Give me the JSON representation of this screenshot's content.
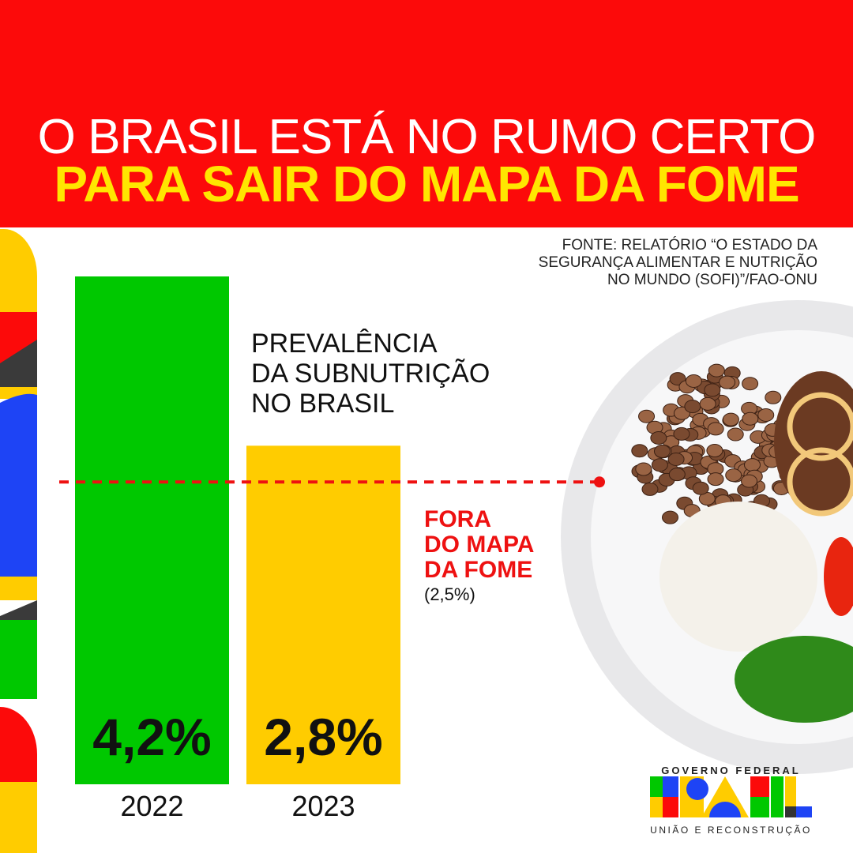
{
  "header": {
    "line1": "O BRASIL ESTÁ NO RUMO CERTO",
    "line2": "PARA SAIR DO MAPA DA FOME"
  },
  "source": [
    "FONTE: RELATÓRIO “O ESTADO DA",
    "SEGURANÇA ALIMENTAR E NUTRIÇÃO",
    "NO MUNDO (SOFI)”/FAO-ONU"
  ],
  "annotation": {
    "lines": [
      "FORA",
      "DO MAPA",
      "DA FOME"
    ],
    "value_label": "(2,5%)"
  },
  "logo": {
    "top": "GOVERNO FEDERAL",
    "word": "BRASIL",
    "bottom": "UNIÃO E RECONSTRUÇÃO"
  },
  "colors": {
    "red": "#fc0a0a",
    "yellow": "#ffe600",
    "green": "#00c800",
    "bar2023": "#ffcc00"
  },
  "chart_data": {
    "type": "bar",
    "title_lines": [
      "PREVALÊNCIA",
      "DA SUBNUTRIÇÃO",
      "NO BRASIL"
    ],
    "categories": [
      "2022",
      "2023"
    ],
    "values": [
      4.2,
      2.8
    ],
    "value_labels": [
      "4,2%",
      "2,8%"
    ],
    "bar_colors": [
      "#00c800",
      "#ffcc00"
    ],
    "threshold": {
      "value": 2.5,
      "style": "dashed",
      "color": "#ee1111"
    },
    "ylim": [
      0,
      4.2
    ],
    "grid": false
  }
}
